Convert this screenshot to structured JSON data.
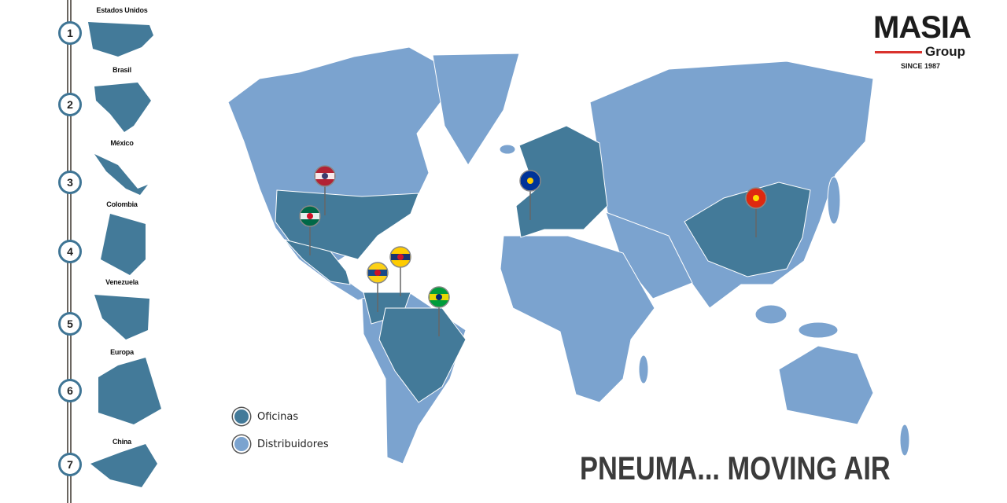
{
  "colors": {
    "offices": "#437a99",
    "distributors": "#7ba3cf",
    "rail": "#6b6660",
    "accent_red": "#d9322d"
  },
  "sidebar": {
    "items": [
      {
        "number": "1",
        "label": "Estados Unidos"
      },
      {
        "number": "2",
        "label": "Brasil"
      },
      {
        "number": "3",
        "label": "México"
      },
      {
        "number": "4",
        "label": "Colombia"
      },
      {
        "number": "5",
        "label": "Venezuela"
      },
      {
        "number": "6",
        "label": "Europa"
      },
      {
        "number": "7",
        "label": "China"
      }
    ]
  },
  "logo": {
    "name": "MASIA",
    "sub": "Group",
    "since": "SINCE 1987"
  },
  "legend": [
    {
      "label": "Oficinas",
      "type": "offices"
    },
    {
      "label": "Distribuidores",
      "type": "distributors"
    }
  ],
  "pins": [
    {
      "icon": "usa-flag-icon",
      "country": "Estados Unidos"
    },
    {
      "icon": "mexico-flag-icon",
      "country": "México"
    },
    {
      "icon": "colombia-flag-icon",
      "country": "Colombia"
    },
    {
      "icon": "venezuela-flag-icon",
      "country": "Venezuela"
    },
    {
      "icon": "brazil-flag-icon",
      "country": "Brasil"
    },
    {
      "icon": "eu-flag-icon",
      "country": "Europa"
    },
    {
      "icon": "china-flag-icon",
      "country": "China"
    }
  ],
  "slogan": "PNEUMA... MOVING AIR"
}
